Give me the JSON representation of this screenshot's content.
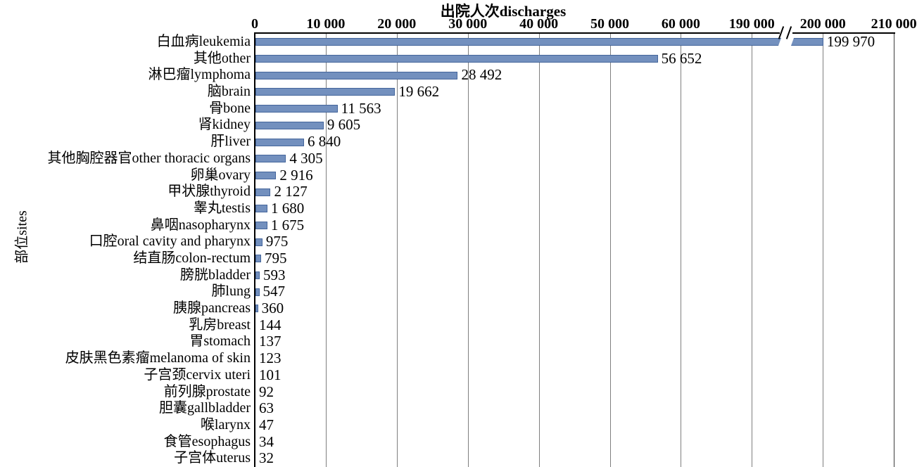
{
  "chart_data": {
    "type": "bar",
    "orientation": "horizontal",
    "title": "出院人次discharges",
    "xlabel": "出院人次discharges",
    "ylabel": "部位sites",
    "grid": true,
    "bar_color": "#7390BE",
    "bar_border_color": "#44659B",
    "gridline_color": "#7f7f7f",
    "axis_color": "#000000",
    "x_ticks": [
      {
        "value": 0,
        "label": "0"
      },
      {
        "value": 10000,
        "label": "10 000"
      },
      {
        "value": 20000,
        "label": "20 000"
      },
      {
        "value": 30000,
        "label": "30 000"
      },
      {
        "value": 40000,
        "label": "40 000"
      },
      {
        "value": 50000,
        "label": "50 000"
      },
      {
        "value": 60000,
        "label": "60 000"
      },
      {
        "value": 190000,
        "label": "190 000"
      },
      {
        "value": 200000,
        "label": "200 000"
      },
      {
        "value": 210000,
        "label": "210 000"
      }
    ],
    "axis_break": {
      "compressed_value_range": [
        60000,
        190000
      ],
      "marker_between_tick_labels": [
        "190 000",
        "200 000"
      ],
      "marker_glyph": "//"
    },
    "rows": [
      {
        "category": "白血病leukemia",
        "value": 199970,
        "value_label": "199 970"
      },
      {
        "category": "其他other",
        "value": 56652,
        "value_label": "56 652"
      },
      {
        "category": "淋巴瘤lymphoma",
        "value": 28492,
        "value_label": "28 492"
      },
      {
        "category": "脑brain",
        "value": 19662,
        "value_label": "19 662"
      },
      {
        "category": "骨bone",
        "value": 11563,
        "value_label": "11 563"
      },
      {
        "category": "肾kidney",
        "value": 9605,
        "value_label": "9 605"
      },
      {
        "category": "肝liver",
        "value": 6840,
        "value_label": "6 840"
      },
      {
        "category": "其他胸腔器官other thoracic organs",
        "value": 4305,
        "value_label": "4 305"
      },
      {
        "category": "卵巢ovary",
        "value": 2916,
        "value_label": "2 916"
      },
      {
        "category": "甲状腺thyroid",
        "value": 2127,
        "value_label": "2 127"
      },
      {
        "category": "睾丸testis",
        "value": 1680,
        "value_label": "1 680"
      },
      {
        "category": "鼻咽nasopharynx",
        "value": 1675,
        "value_label": "1 675"
      },
      {
        "category": "口腔oral cavity and pharynx",
        "value": 975,
        "value_label": "975"
      },
      {
        "category": "结直肠colon-rectum",
        "value": 795,
        "value_label": "795"
      },
      {
        "category": "膀胱bladder",
        "value": 593,
        "value_label": "593"
      },
      {
        "category": "肺lung",
        "value": 547,
        "value_label": "547"
      },
      {
        "category": "胰腺pancreas",
        "value": 360,
        "value_label": "360"
      },
      {
        "category": "乳房breast",
        "value": 144,
        "value_label": "144"
      },
      {
        "category": "胃stomach",
        "value": 137,
        "value_label": "137"
      },
      {
        "category": "皮肤黑色素瘤melanoma of skin",
        "value": 123,
        "value_label": "123"
      },
      {
        "category": "子宫颈cervix uteri",
        "value": 101,
        "value_label": "101"
      },
      {
        "category": "前列腺prostate",
        "value": 92,
        "value_label": "92"
      },
      {
        "category": "胆囊gallbladder",
        "value": 63,
        "value_label": "63"
      },
      {
        "category": "喉larynx",
        "value": 47,
        "value_label": "47"
      },
      {
        "category": "食管esophagus",
        "value": 34,
        "value_label": "34"
      },
      {
        "category": "子宫体uterus",
        "value": 32,
        "value_label": "32"
      }
    ]
  }
}
